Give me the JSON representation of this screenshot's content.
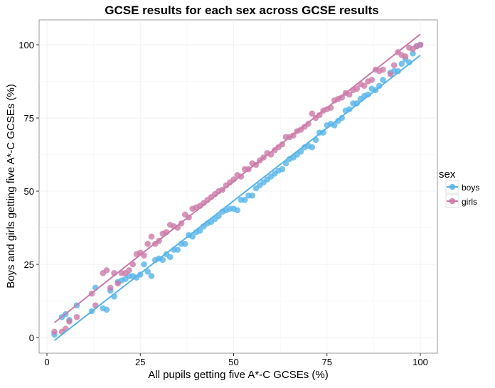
{
  "chart_data": {
    "type": "scatter",
    "title": "GCSE results for each sex across GCSE results",
    "xlabel": "All pupils getting five A*-C GCSEs (%)",
    "ylabel": "Boys and girls getting five A*-C GCSEs (%)",
    "xlim": [
      0,
      100
    ],
    "ylim": [
      -5,
      105
    ],
    "x_ticks": [
      0,
      25,
      50,
      75,
      100
    ],
    "y_ticks": [
      0,
      25,
      50,
      75,
      100
    ],
    "grid": true,
    "legend": {
      "title": "sex",
      "placement": "right"
    },
    "series": [
      {
        "name": "boys",
        "color": "#56B4E9",
        "fit_line": {
          "x": [
            2,
            100
          ],
          "y": [
            -1,
            96.4
          ]
        },
        "x": [
          2,
          4,
          5,
          6,
          8,
          12,
          13,
          15,
          16,
          17,
          18,
          19,
          20,
          21,
          22,
          23,
          24,
          25,
          26,
          27,
          28,
          29,
          30,
          31,
          32,
          33,
          34,
          35,
          36,
          37,
          38,
          39,
          40,
          41,
          42,
          43,
          44,
          45,
          46,
          47,
          48,
          49,
          50,
          51,
          52,
          53,
          54,
          55,
          56,
          57,
          58,
          59,
          60,
          61,
          62,
          63,
          64,
          65,
          66,
          67,
          68,
          69,
          70,
          71,
          72,
          73,
          74,
          75,
          76,
          77,
          78,
          79,
          80,
          81,
          82,
          83,
          84,
          85,
          86,
          87,
          88,
          89,
          90,
          92,
          93,
          94,
          95,
          96,
          97,
          98,
          99,
          100
        ],
        "y": [
          1,
          7,
          8,
          6,
          11,
          9,
          17,
          10,
          9.5,
          16,
          14,
          19,
          19.5,
          20,
          21,
          21,
          20.5,
          21.5,
          25,
          22.5,
          21,
          26.5,
          27,
          26.5,
          28.5,
          27.5,
          30,
          30,
          32,
          32,
          35,
          34.5,
          36,
          36.5,
          38,
          39,
          39.5,
          40.5,
          41.5,
          43,
          43.5,
          44,
          44,
          43.5,
          47,
          47,
          48.5,
          48.5,
          51,
          52,
          53,
          54,
          55,
          56,
          57,
          57.5,
          59.5,
          61,
          61.5,
          62.5,
          63.5,
          65,
          65.5,
          65,
          67.5,
          70,
          70,
          72.5,
          73,
          72.5,
          74,
          75,
          77.5,
          78,
          80,
          80,
          81.5,
          82.5,
          83,
          85,
          84.5,
          86,
          88,
          90.5,
          91,
          91,
          93.5,
          95,
          94,
          97,
          99.5,
          100
        ]
      },
      {
        "name": "girls",
        "color": "#CC79A7",
        "fit_line": {
          "x": [
            2,
            100
          ],
          "y": [
            5.1,
            103.6
          ]
        },
        "x": [
          2,
          4,
          5,
          6,
          8,
          12,
          13,
          15,
          16,
          17,
          18,
          19,
          20,
          21,
          22,
          23,
          24,
          25,
          26,
          27,
          28,
          29,
          30,
          31,
          32,
          33,
          34,
          35,
          36,
          37,
          38,
          39,
          40,
          41,
          42,
          43,
          44,
          45,
          46,
          47,
          48,
          49,
          50,
          51,
          52,
          53,
          54,
          55,
          56,
          57,
          58,
          59,
          60,
          61,
          62,
          63,
          64,
          65,
          66,
          67,
          68,
          69,
          70,
          71,
          72,
          73,
          74,
          75,
          76,
          77,
          78,
          79,
          80,
          81,
          82,
          83,
          84,
          85,
          86,
          87,
          88,
          89,
          90,
          92,
          93,
          94,
          95,
          96,
          97,
          98,
          99,
          100
        ],
        "y": [
          2,
          2,
          3,
          5.5,
          7,
          15,
          11,
          22,
          23,
          17,
          22,
          18.5,
          22,
          22,
          23,
          25,
          28.5,
          29,
          28,
          32,
          34.5,
          32,
          33,
          35.5,
          36,
          38.5,
          38,
          37.5,
          39,
          42,
          41,
          44,
          44.5,
          45,
          46,
          47,
          48,
          49,
          50,
          50.5,
          52,
          53,
          54,
          55.5,
          55,
          57.5,
          57.5,
          59.5,
          59,
          60.5,
          61.5,
          63,
          62.5,
          64,
          65,
          66,
          68.5,
          68.5,
          69,
          70.5,
          71,
          72,
          73,
          76.5,
          75,
          76,
          77.5,
          78,
          78.5,
          81,
          81.5,
          82,
          83.5,
          83,
          84.5,
          85,
          86.5,
          86,
          87.5,
          88,
          91.5,
          91,
          91.5,
          90,
          93,
          97.5,
          96.5,
          96,
          99,
          98.5,
          99.5,
          100
        ]
      }
    ]
  }
}
